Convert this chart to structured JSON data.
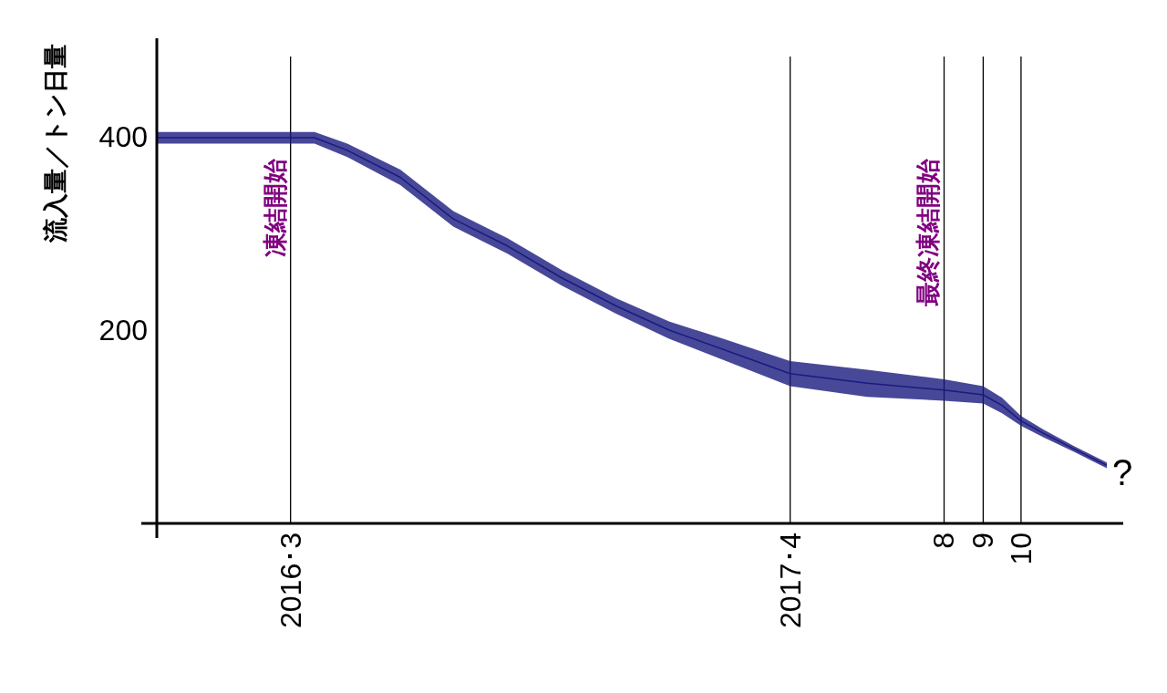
{
  "chart_data": {
    "type": "line",
    "ylabel": "流入量／トン日量",
    "xlim": [
      "2015-11-16",
      "2017-12-21"
    ],
    "ylim": [
      0,
      500
    ],
    "xticks": [
      {
        "value": "2016-03",
        "label": "2016･3"
      },
      {
        "value": "2017-04",
        "label": "2017･4"
      },
      {
        "value": "2017-08",
        "label": "8"
      },
      {
        "value": "2017-09",
        "label": "9"
      },
      {
        "value": "2017-10",
        "label": "10"
      }
    ],
    "yticks": [
      200,
      400
    ],
    "grid": false,
    "series": [
      {
        "color": "#1a1a80",
        "x": [
          "2015-11-16",
          "2016-01-22",
          "2016-03-20",
          "2016-04-15",
          "2016-05-27",
          "2016-07-08",
          "2016-08-20",
          "2016-10-02",
          "2016-11-14",
          "2016-12-26",
          "2017-02-07",
          "2017-04-01",
          "2017-06-01",
          "2017-08-01",
          "2017-09-01",
          "2017-09-16",
          "2017-10-01",
          "2017-10-19",
          "2017-11-12",
          "2017-12-08"
        ],
        "values": [
          399,
          399,
          399,
          386,
          358,
          315,
          287,
          254,
          225,
          200,
          180,
          155,
          145,
          138,
          133,
          122,
          106,
          93,
          77,
          60
        ],
        "lower": [
          393,
          393,
          393,
          379,
          350,
          307,
          279,
          246,
          217,
          191,
          169,
          142,
          131,
          127,
          124,
          114,
          101,
          89,
          74,
          57
        ],
        "upper": [
          405,
          405,
          405,
          393,
          366,
          323,
          295,
          262,
          233,
          209,
          191,
          168,
          159,
          149,
          142,
          130,
          111,
          97,
          80,
          63
        ]
      }
    ],
    "ref_lines": [
      {
        "axis": "x",
        "value": "2016-03",
        "label": "凍結開始",
        "color": "#000000"
      },
      {
        "axis": "x",
        "value": "2017-04",
        "color": "#000000"
      },
      {
        "axis": "x",
        "value": "2017-08",
        "label": "最終凍結開始",
        "color": "#000000"
      },
      {
        "axis": "x",
        "value": "2017-09",
        "color": "#000000"
      },
      {
        "axis": "x",
        "value": "2017-10",
        "color": "#000000"
      }
    ],
    "annotations": [
      {
        "text": "?",
        "x": "2017-12-08",
        "y": 60
      }
    ]
  }
}
